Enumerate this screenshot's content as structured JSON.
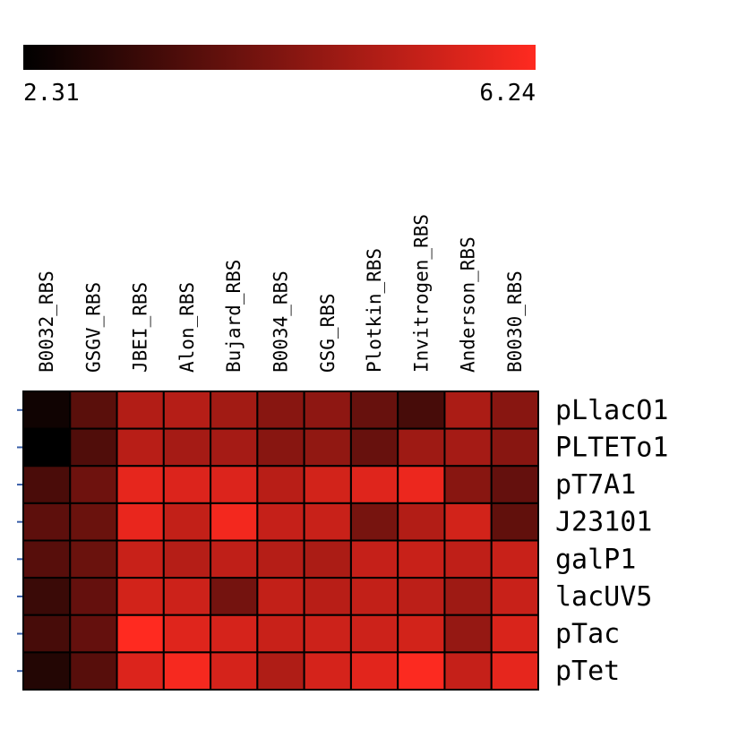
{
  "chart_data": {
    "type": "heatmap",
    "colorbar": {
      "min": 2.31,
      "max": 6.24,
      "min_label": "2.31",
      "max_label": "6.24",
      "colors": [
        "#000000",
        "#ff2a20"
      ]
    },
    "columns": [
      "B0032_RBS",
      "GSGV_RBS",
      "JBEI_RBS",
      "Alon_RBS",
      "Bujard_RBS",
      "B0034_RBS",
      "GSG_RBS",
      "Plotkin_RBS",
      "Invitrogen_RBS",
      "Anderson_RBS",
      "B0030_RBS"
    ],
    "rows": [
      "pLlacO1",
      "PLTETo1",
      "pT7A1",
      "J23101",
      "galP1",
      "lacUV5",
      "pTac",
      "pTet"
    ],
    "values": [
      [
        2.55,
        3.7,
        5.05,
        5.1,
        4.8,
        4.4,
        4.5,
        3.9,
        3.4,
        4.95,
        4.4
      ],
      [
        2.31,
        3.55,
        5.15,
        4.85,
        4.85,
        4.4,
        4.55,
        3.9,
        4.75,
        4.85,
        4.4
      ],
      [
        3.45,
        4.0,
        5.85,
        5.7,
        5.7,
        5.15,
        5.55,
        5.75,
        5.95,
        4.4,
        3.85
      ],
      [
        3.75,
        3.95,
        5.9,
        5.3,
        6.05,
        5.35,
        5.4,
        4.15,
        5.05,
        5.55,
        3.8
      ],
      [
        3.65,
        3.95,
        5.4,
        5.1,
        5.25,
        5.1,
        4.95,
        5.35,
        5.4,
        5.25,
        5.4
      ],
      [
        3.2,
        3.85,
        5.55,
        5.45,
        4.1,
        5.3,
        5.15,
        5.3,
        5.2,
        4.75,
        5.4
      ],
      [
        3.4,
        3.85,
        6.24,
        5.75,
        5.6,
        5.4,
        5.45,
        5.45,
        5.55,
        4.6,
        5.65
      ],
      [
        2.85,
        3.65,
        5.7,
        6.1,
        5.6,
        5.0,
        5.6,
        5.8,
        6.2,
        5.35,
        5.85
      ]
    ]
  }
}
